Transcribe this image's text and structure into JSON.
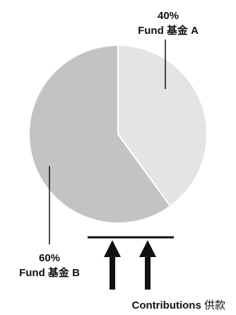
{
  "chart_data": {
    "type": "pie",
    "slices": [
      {
        "name": "Fund 基金 A",
        "value": 40,
        "label_pct": "40%",
        "label_name": "Fund 基金 A",
        "color": "#e4e4e4"
      },
      {
        "name": "Fund 基金 B",
        "value": 60,
        "label_pct": "60%",
        "label_name": "Fund 基金 B",
        "color": "#c3c3c3"
      }
    ],
    "annotation": {
      "bold": "Contributions",
      "rest": " 供款"
    },
    "colors": {
      "slice_edge": "#ffffff",
      "ink": "#111111"
    }
  }
}
